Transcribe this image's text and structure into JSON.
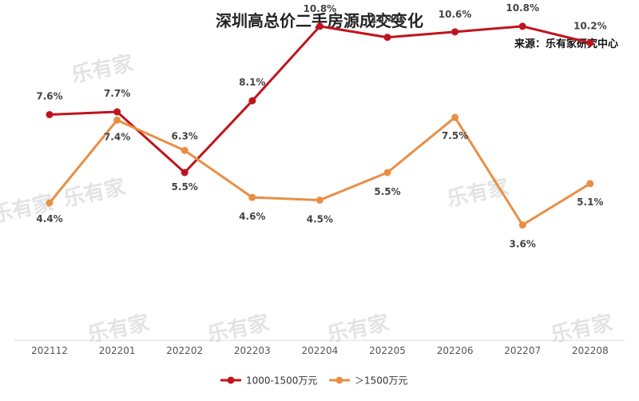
{
  "watermark": "乐有家",
  "chart_data": {
    "type": "line",
    "title": "深圳高总价二手房源成交变化",
    "source": "来源：乐有家研究中心",
    "categories": [
      "202112",
      "202201",
      "202202",
      "202203",
      "202204",
      "202205",
      "202206",
      "202207",
      "202208"
    ],
    "series": [
      {
        "name": "1000-1500万元",
        "color": "#c0141c",
        "values": [
          7.6,
          7.7,
          5.5,
          8.1,
          10.8,
          10.4,
          10.6,
          10.8,
          10.2
        ],
        "labels": [
          "7.6%",
          "7.7%",
          "5.5%",
          "8.1%",
          "10.8%",
          "10.4%",
          "10.6%",
          "10.8%",
          "10.2%"
        ]
      },
      {
        "name": "＞1500万元",
        "color": "#e88f45",
        "values": [
          4.4,
          7.4,
          6.3,
          4.6,
          4.5,
          5.5,
          7.5,
          3.6,
          5.1
        ],
        "labels": [
          "4.4%",
          "7.4%",
          "6.3%",
          "4.6%",
          "4.5%",
          "5.5%",
          "7.5%",
          "3.6%",
          "5.1%"
        ]
      }
    ],
    "ylim": [
      0,
      12
    ],
    "grid": false,
    "legend_position": "bottom"
  }
}
